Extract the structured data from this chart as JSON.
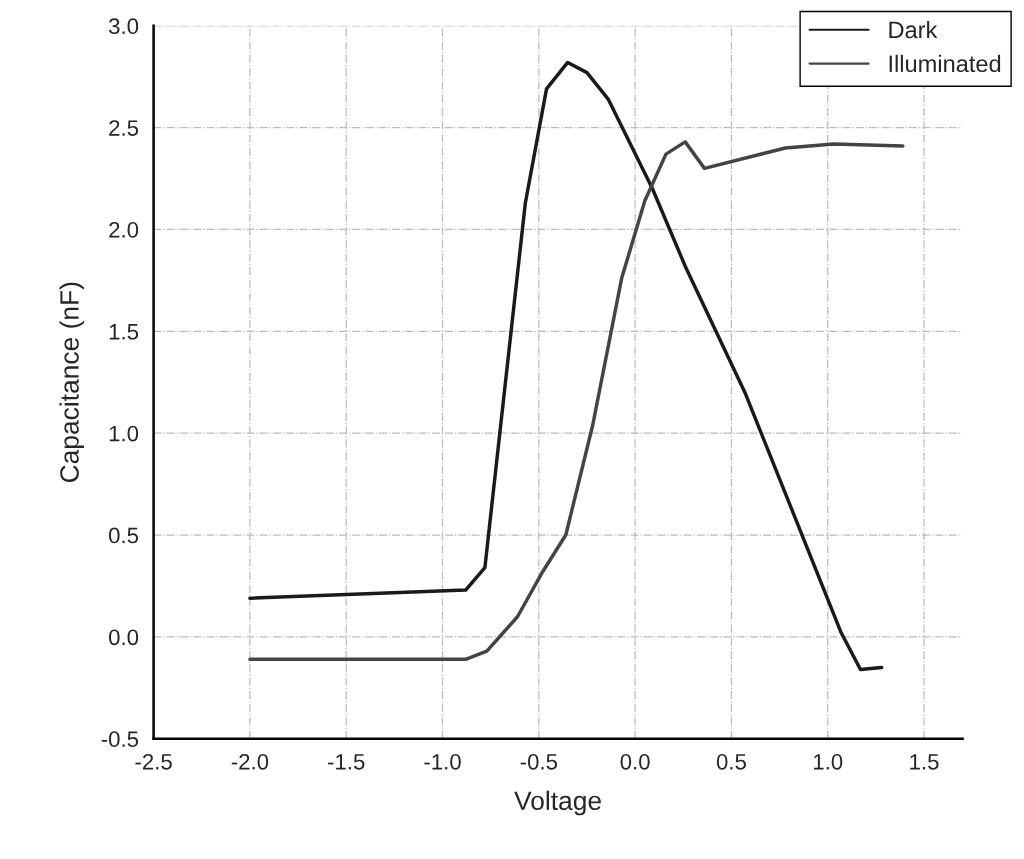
{
  "chart_data": {
    "type": "line",
    "xlabel": "Voltage",
    "ylabel": "Capacitance (nF)",
    "xlim": [
      -2.5,
      1.7
    ],
    "xticks": [
      -2.5,
      {
        "value": -2,
        "label": "-2.0"
      },
      -1.5,
      {
        "value": -1,
        "label": "-1.0"
      },
      -0.5,
      {
        "value": 0,
        "label": "0.0"
      },
      0.5,
      {
        "value": 1,
        "label": "1.0"
      },
      1.5
    ],
    "ylim": [
      -0.5,
      3.0
    ],
    "yticks": [
      -0.5,
      {
        "value": 0,
        "label": "0.0"
      },
      0.5,
      {
        "value": 1,
        "label": "1.0"
      },
      1.5,
      {
        "value": 2,
        "label": "2.0"
      },
      2.5,
      {
        "value": 3,
        "label": "3.0"
      }
    ],
    "grid": true,
    "legend": "top right",
    "line_style": "solid",
    "marker": "none",
    "series": [
      {
        "name": "Dark",
        "color": "#1a1a1a",
        "x": [
          -2.0,
          -0.88,
          -0.78,
          -0.57,
          -0.46,
          -0.35,
          -0.25,
          -0.14,
          0.09,
          0.26,
          0.57,
          1.07,
          1.17,
          1.28
        ],
        "values": [
          0.19,
          0.23,
          0.34,
          2.13,
          2.69,
          2.82,
          2.77,
          2.64,
          2.2,
          1.82,
          1.2,
          0.02,
          -0.16,
          -0.15
        ]
      },
      {
        "name": "Illuminated",
        "color": "#444444",
        "x": [
          -2.0,
          -0.98,
          -0.88,
          -0.77,
          -0.61,
          -0.48,
          -0.36,
          -0.22,
          -0.07,
          0.05,
          0.16,
          0.26,
          0.36,
          0.78,
          1.03,
          1.39
        ],
        "values": [
          -0.11,
          -0.11,
          -0.11,
          -0.07,
          0.1,
          0.32,
          0.5,
          1.04,
          1.76,
          2.14,
          2.37,
          2.43,
          2.3,
          2.4,
          2.42,
          2.41
        ]
      }
    ]
  }
}
